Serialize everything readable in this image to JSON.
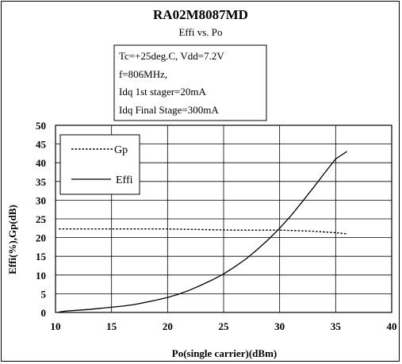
{
  "chart_data": {
    "type": "line",
    "title": "RA02M8087MD",
    "subtitle": "Effi vs. Po",
    "conditions": [
      "Tc=+25deg.C, Vdd=7.2V",
      "f=806MHz,",
      "Idq 1st stager=20mA",
      "Idq Final Stage=300mA"
    ],
    "xlabel": "Po(single carrier)(dBm)",
    "ylabel": "Effi(%),Gp(dB)",
    "xlim": [
      10,
      40
    ],
    "ylim": [
      0,
      50
    ],
    "xticks": [
      "10",
      "15",
      "20",
      "25",
      "30",
      "35",
      "40"
    ],
    "yticks": [
      "0",
      "5",
      "10",
      "15",
      "20",
      "25",
      "30",
      "35",
      "40",
      "45",
      "50"
    ],
    "grid": true,
    "legend_position": "top-left",
    "series": [
      {
        "name": "Gp",
        "style": "dotted",
        "color": "#000000",
        "x": [
          10.3,
          12,
          14,
          16,
          18,
          20,
          22,
          24,
          26,
          28,
          30,
          31,
          32,
          33,
          34,
          35,
          36
        ],
        "y": [
          22.3,
          22.3,
          22.3,
          22.3,
          22.3,
          22.3,
          22.2,
          22.1,
          22.0,
          22.0,
          22.0,
          21.9,
          21.8,
          21.7,
          21.5,
          21.3,
          21.0
        ]
      },
      {
        "name": "Effi",
        "style": "solid",
        "color": "#000000",
        "x": [
          10.3,
          11,
          12,
          13,
          14,
          15,
          16,
          17,
          18,
          19,
          20,
          21,
          22,
          23,
          24,
          25,
          26,
          27,
          28,
          29,
          30,
          31,
          32,
          33,
          34,
          35,
          36
        ],
        "y": [
          0.1,
          0.4,
          0.6,
          0.8,
          1.1,
          1.4,
          1.7,
          2.1,
          2.7,
          3.3,
          4.0,
          4.9,
          6.0,
          7.3,
          8.7,
          10.3,
          12.2,
          14.3,
          16.8,
          19.5,
          22.5,
          25.8,
          29.5,
          33.3,
          37.2,
          41.0,
          43.0
        ]
      }
    ]
  }
}
